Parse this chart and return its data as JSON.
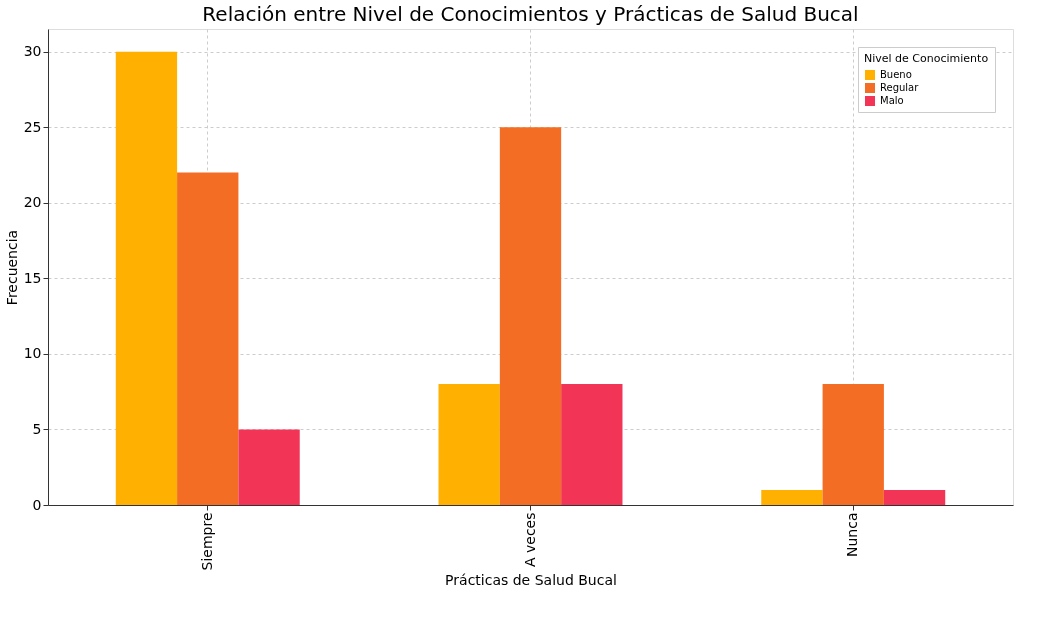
{
  "chart_data": {
    "type": "bar",
    "title": "Relación entre Nivel de Conocimientos y Prácticas de Salud Bucal",
    "xlabel": "Prácticas de Salud Bucal",
    "ylabel": "Frecuencia",
    "legend_title": "Nivel de Conocimiento",
    "categories": [
      "Siempre",
      "A veces",
      "Nunca"
    ],
    "series": [
      {
        "name": "Bueno",
        "color": "#ffb000",
        "values": [
          30,
          8,
          1
        ]
      },
      {
        "name": "Regular",
        "color": "#f46d25",
        "values": [
          22,
          25,
          8
        ]
      },
      {
        "name": "Malo",
        "color": "#f23557",
        "values": [
          5,
          8,
          1
        ]
      }
    ],
    "ylim": [
      0,
      31.5
    ],
    "yticks": [
      0,
      5,
      10,
      15,
      20,
      25,
      30
    ],
    "grid": true,
    "legend": "top right"
  }
}
